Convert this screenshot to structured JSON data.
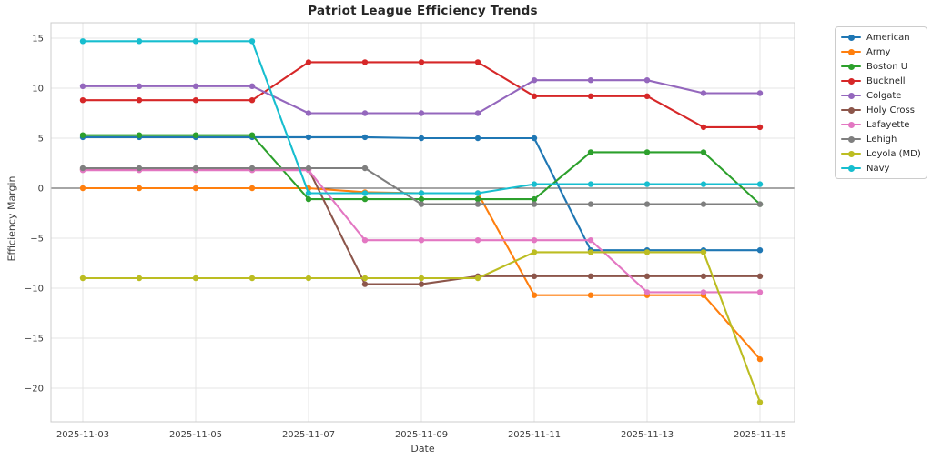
{
  "title": "Patriot League Efficiency Trends",
  "chart_data": {
    "type": "line",
    "title": "Patriot League Efficiency Trends",
    "xlabel": "Date",
    "ylabel": "Efficiency Margin",
    "x": [
      "2025-11-03",
      "2025-11-04",
      "2025-11-05",
      "2025-11-06",
      "2025-11-07",
      "2025-11-08",
      "2025-11-09",
      "2025-11-10",
      "2025-11-11",
      "2025-11-12",
      "2025-11-13",
      "2025-11-14",
      "2025-11-15"
    ],
    "x_tick_labels": [
      "2025-11-03",
      "2025-11-05",
      "2025-11-07",
      "2025-11-09",
      "2025-11-11",
      "2025-11-13",
      "2025-11-15"
    ],
    "x_tick_indices": [
      0,
      2,
      4,
      6,
      8,
      10,
      12
    ],
    "y_ticks": [
      15,
      10,
      5,
      0,
      -5,
      -10,
      -15,
      -20
    ],
    "ylim": [
      -23.5,
      17.0
    ],
    "grid": true,
    "zero_line": true,
    "legend_position": "outside-upper-right",
    "marker": "circle",
    "series": [
      {
        "name": "American",
        "color": "#1f77b4",
        "values": [
          5.1,
          5.1,
          5.1,
          5.1,
          5.1,
          5.1,
          5.0,
          5.0,
          5.0,
          -6.2,
          -6.2,
          -6.2,
          -6.2
        ]
      },
      {
        "name": "Army",
        "color": "#ff7f0e",
        "values": [
          0.0,
          0.0,
          0.0,
          0.0,
          0.0,
          -0.4,
          -0.5,
          -0.5,
          -10.7,
          -10.7,
          -10.7,
          -10.7,
          -17.1
        ]
      },
      {
        "name": "Boston U",
        "color": "#2ca02c",
        "values": [
          5.3,
          5.3,
          5.3,
          5.3,
          -1.1,
          -1.1,
          -1.1,
          -1.1,
          -1.1,
          3.6,
          3.6,
          3.6,
          -1.6
        ]
      },
      {
        "name": "Bucknell",
        "color": "#d62728",
        "values": [
          8.8,
          8.8,
          8.8,
          8.8,
          12.6,
          12.6,
          12.6,
          12.6,
          9.2,
          9.2,
          9.2,
          6.1,
          6.1
        ]
      },
      {
        "name": "Colgate",
        "color": "#9467bd",
        "values": [
          10.2,
          10.2,
          10.2,
          10.2,
          7.5,
          7.5,
          7.5,
          7.5,
          10.8,
          10.8,
          10.8,
          9.5,
          9.5
        ]
      },
      {
        "name": "Holy Cross",
        "color": "#8c564b",
        "values": [
          1.9,
          1.9,
          1.9,
          1.9,
          1.9,
          -9.6,
          -9.6,
          -8.8,
          -8.8,
          -8.8,
          -8.8,
          -8.8,
          -8.8
        ]
      },
      {
        "name": "Lafayette",
        "color": "#e377c2",
        "values": [
          1.8,
          1.8,
          1.8,
          1.8,
          1.8,
          -5.2,
          -5.2,
          -5.2,
          -5.2,
          -5.2,
          -10.4,
          -10.4,
          -10.4
        ]
      },
      {
        "name": "Lehigh",
        "color": "#7f7f7f",
        "values": [
          2.0,
          2.0,
          2.0,
          2.0,
          2.0,
          2.0,
          -1.6,
          -1.6,
          -1.6,
          -1.6,
          -1.6,
          -1.6,
          -1.6
        ]
      },
      {
        "name": "Loyola (MD)",
        "color": "#bcbd22",
        "values": [
          -9.0,
          -9.0,
          -9.0,
          -9.0,
          -9.0,
          -9.0,
          -9.0,
          -9.0,
          -6.4,
          -6.4,
          -6.4,
          -6.4,
          -21.4
        ]
      },
      {
        "name": "Navy",
        "color": "#17becf",
        "values": [
          14.7,
          14.7,
          14.7,
          14.7,
          -0.5,
          -0.5,
          -0.5,
          -0.5,
          0.4,
          0.4,
          0.4,
          0.4,
          0.4
        ]
      }
    ],
    "style_colors": {
      "grid": "#e4e4e4",
      "spine": "#cccccc",
      "zero_line": "#4d4d4d",
      "tick_text": "#3d3d3d"
    }
  }
}
